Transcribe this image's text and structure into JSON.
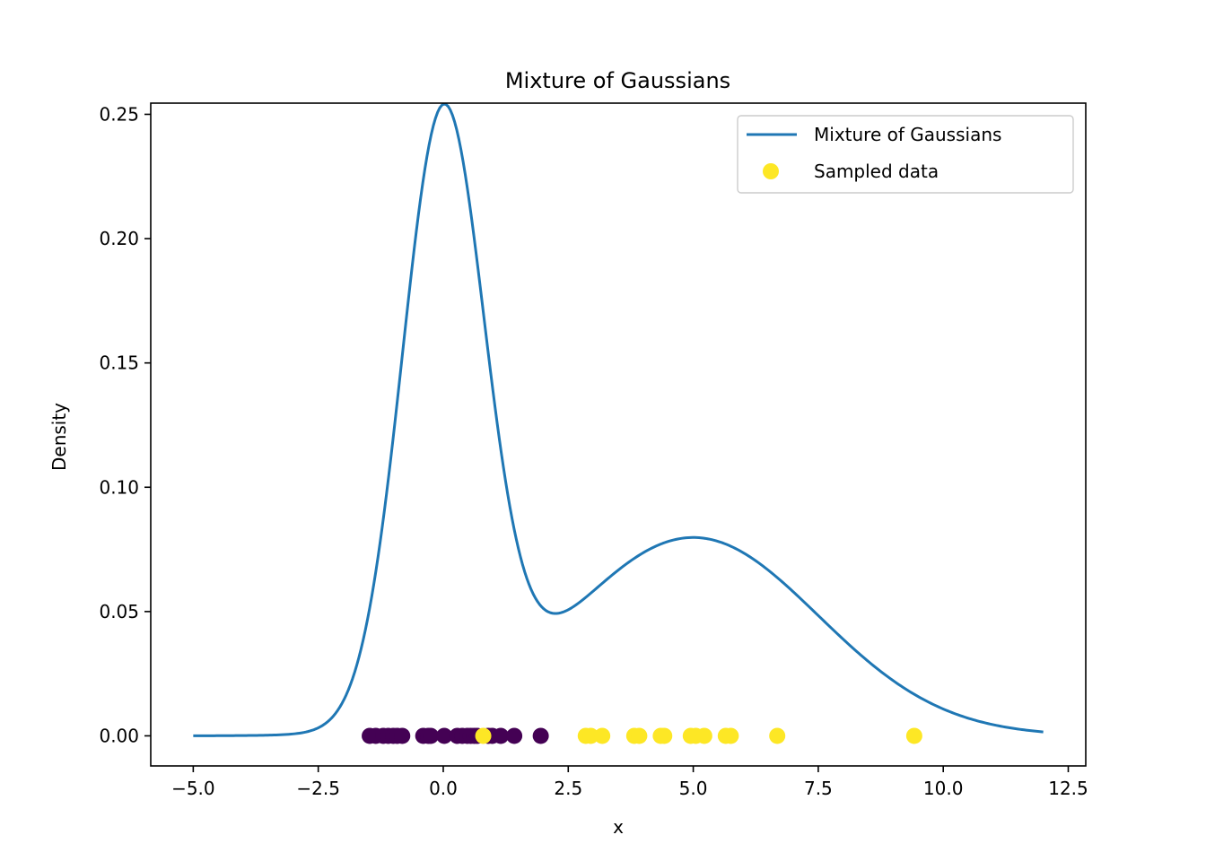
{
  "chart_data": {
    "type": "line",
    "title": "Mixture of Gaussians",
    "xlabel": "x",
    "ylabel": "Density",
    "xlim": [
      -5.85,
      12.85
    ],
    "ylim": [
      -0.0121,
      0.2545
    ],
    "xticks": [
      -5.0,
      -2.5,
      0.0,
      2.5,
      5.0,
      7.5,
      10.0,
      12.5
    ],
    "xtick_labels": [
      "−5.0",
      "−2.5",
      "0.0",
      "2.5",
      "5.0",
      "7.5",
      "10.0",
      "12.5"
    ],
    "yticks": [
      0.0,
      0.05,
      0.1,
      0.15,
      0.2,
      0.25
    ],
    "ytick_labels": [
      "0.00",
      "0.05",
      "0.10",
      "0.15",
      "0.20",
      "0.25"
    ],
    "grid": false,
    "legend_position": "top-right",
    "mixture": {
      "components": [
        {
          "weight": 0.5,
          "mean": 0.0,
          "std": 0.82
        },
        {
          "weight": 0.5,
          "mean": 5.0,
          "std": 2.5
        }
      ],
      "x_range": [
        -5.0,
        12.0
      ]
    },
    "series": [
      {
        "name": "Mixture of Gaussians",
        "kind": "line",
        "color": "#1f77b4"
      },
      {
        "name": "Sampled data",
        "kind": "scatter",
        "color": "#fde725",
        "points": [
          {
            "x": -1.47,
            "y": 0.0,
            "cluster": 0
          },
          {
            "x": -1.35,
            "y": 0.0,
            "cluster": 0
          },
          {
            "x": -1.2,
            "y": 0.0,
            "cluster": 0
          },
          {
            "x": -1.1,
            "y": 0.0,
            "cluster": 0
          },
          {
            "x": -1.0,
            "y": 0.0,
            "cluster": 0
          },
          {
            "x": -0.92,
            "y": 0.0,
            "cluster": 0
          },
          {
            "x": -0.82,
            "y": 0.0,
            "cluster": 0
          },
          {
            "x": -0.4,
            "y": 0.0,
            "cluster": 0
          },
          {
            "x": -0.3,
            "y": 0.0,
            "cluster": 0
          },
          {
            "x": -0.25,
            "y": 0.0,
            "cluster": 0
          },
          {
            "x": 0.02,
            "y": 0.0,
            "cluster": 0
          },
          {
            "x": 0.28,
            "y": 0.0,
            "cluster": 0
          },
          {
            "x": 0.38,
            "y": 0.0,
            "cluster": 0
          },
          {
            "x": 0.48,
            "y": 0.0,
            "cluster": 0
          },
          {
            "x": 0.55,
            "y": 0.0,
            "cluster": 0
          },
          {
            "x": 0.62,
            "y": 0.0,
            "cluster": 0
          },
          {
            "x": 0.68,
            "y": 0.0,
            "cluster": 0
          },
          {
            "x": 0.9,
            "y": 0.0,
            "cluster": 0
          },
          {
            "x": 0.98,
            "y": 0.0,
            "cluster": 0
          },
          {
            "x": 1.15,
            "y": 0.0,
            "cluster": 0
          },
          {
            "x": 1.42,
            "y": 0.0,
            "cluster": 0
          },
          {
            "x": 1.95,
            "y": 0.0,
            "cluster": 0
          },
          {
            "x": 0.8,
            "y": 0.0,
            "cluster": 1
          },
          {
            "x": 2.85,
            "y": 0.0,
            "cluster": 1
          },
          {
            "x": 2.95,
            "y": 0.0,
            "cluster": 1
          },
          {
            "x": 3.18,
            "y": 0.0,
            "cluster": 1
          },
          {
            "x": 3.82,
            "y": 0.0,
            "cluster": 1
          },
          {
            "x": 3.92,
            "y": 0.0,
            "cluster": 1
          },
          {
            "x": 4.35,
            "y": 0.0,
            "cluster": 1
          },
          {
            "x": 4.42,
            "y": 0.0,
            "cluster": 1
          },
          {
            "x": 4.95,
            "y": 0.0,
            "cluster": 1
          },
          {
            "x": 5.05,
            "y": 0.0,
            "cluster": 1
          },
          {
            "x": 5.22,
            "y": 0.0,
            "cluster": 1
          },
          {
            "x": 5.65,
            "y": 0.0,
            "cluster": 1
          },
          {
            "x": 5.75,
            "y": 0.0,
            "cluster": 1
          },
          {
            "x": 6.68,
            "y": 0.0,
            "cluster": 1
          },
          {
            "x": 9.42,
            "y": 0.0,
            "cluster": 1
          }
        ],
        "cluster_colors": [
          "#440154",
          "#fde725"
        ]
      }
    ]
  }
}
